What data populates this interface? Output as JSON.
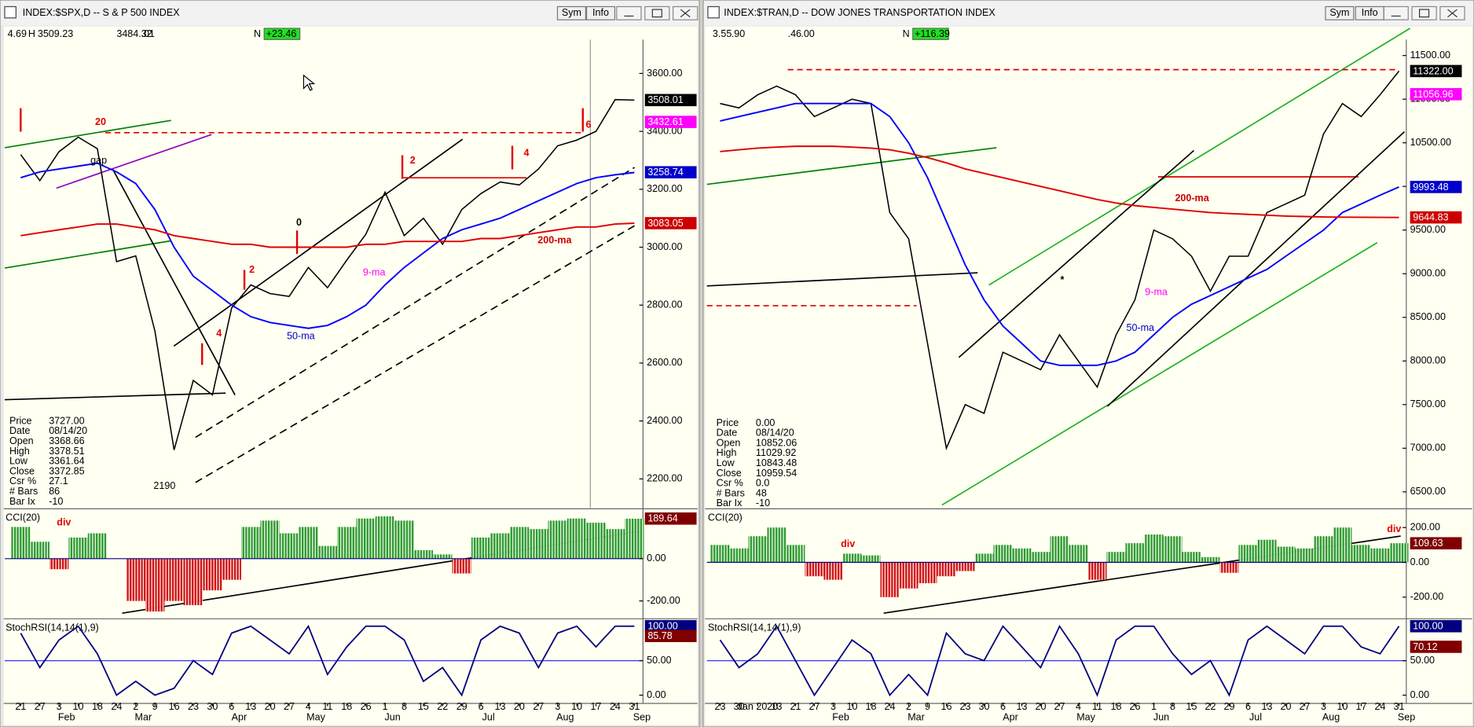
{
  "windows": [
    {
      "title": "INDEX:$SPX,D -- S & P 500 INDEX",
      "buttons": [
        "Sym",
        "Info"
      ],
      "info_row": [
        "4.69",
        "H",
        "3509.23",
        "3484.32",
        ".01",
        "N",
        "+23.46"
      ],
      "chart_data": {
        "type": "line",
        "categories": [
          "21",
          "27",
          "3",
          "10",
          "18",
          "24",
          "2",
          "9",
          "16",
          "23",
          "30",
          "6",
          "13",
          "20",
          "27",
          "4",
          "11",
          "18",
          "26",
          "1",
          "8",
          "15",
          "22",
          "29",
          "6",
          "13",
          "20",
          "27",
          "3",
          "10",
          "17",
          "24",
          "31"
        ],
        "month_labels": [
          null,
          null,
          "Feb",
          null,
          null,
          null,
          "Mar",
          null,
          null,
          null,
          null,
          "Apr",
          null,
          null,
          null,
          "May",
          null,
          null,
          null,
          "Jun",
          null,
          null,
          null,
          null,
          "Jul",
          null,
          null,
          null,
          "Aug",
          null,
          null,
          null,
          "Sep"
        ],
        "ylim": [
          2100,
          3717
        ],
        "yticks": [
          {
            "value": 2200,
            "label": "2200.00"
          },
          {
            "value": 2400,
            "label": "2400.00"
          },
          {
            "value": 2600,
            "label": "2600.00"
          },
          {
            "value": 2800,
            "label": "2800.00"
          },
          {
            "value": 3000,
            "label": "3000.00"
          },
          {
            "value": 3200,
            "label": "3200.00"
          },
          {
            "value": 3400,
            "label": "3400.00"
          },
          {
            "value": 3600,
            "label": "3600.00"
          }
        ],
        "series": [
          {
            "name": "Price",
            "color": "#000000",
            "values": [
              3320,
              3230,
              3330,
              3380,
              3340,
              2950,
              2970,
              2710,
              2300,
              2540,
              2490,
              2790,
              2870,
              2840,
              2830,
              2930,
              2860,
              2955,
              3045,
              3190,
              3040,
              3100,
              3010,
              3130,
              3185,
              3225,
              3215,
              3270,
              3350,
              3370,
              3400,
              3510,
              3508
            ]
          },
          {
            "name": "50-ma",
            "color": "#0000ff",
            "values": [
              3240,
              3260,
              3270,
              3280,
              3290,
              3260,
              3220,
              3130,
              3000,
              2900,
              2850,
              2800,
              2760,
              2740,
              2730,
              2720,
              2730,
              2760,
              2800,
              2870,
              2930,
              2980,
              3030,
              3060,
              3080,
              3100,
              3130,
              3160,
              3190,
              3220,
              3240,
              3250,
              3258
            ]
          },
          {
            "name": "200-ma",
            "color": "#e00000",
            "values": [
              3040,
              3050,
              3060,
              3070,
              3080,
              3080,
              3070,
              3060,
              3040,
              3030,
              3020,
              3010,
              3010,
              3000,
              3000,
              3000,
              3000,
              3000,
              3010,
              3010,
              3020,
              3020,
              3020,
              3020,
              3030,
              3030,
              3040,
              3050,
              3060,
              3070,
              3070,
              3080,
              3083
            ]
          }
        ],
        "readouts": [
          {
            "value": 3508.01,
            "label": "3508.01",
            "color": "#000000"
          },
          {
            "value": 3432.61,
            "label": "3432.61",
            "color": "#ff00ff"
          },
          {
            "value": 3258.74,
            "label": "3258.74",
            "color": "#0000cc"
          },
          {
            "value": 3083.05,
            "label": "3083.05",
            "color": "#cc0000"
          }
        ]
      },
      "cci": {
        "label": "CCI(20)",
        "ylim": [
          -280,
          227
        ],
        "yticks": [
          {
            "value": 0,
            "label": "0.00"
          },
          {
            "value": -200,
            "label": "-200.00"
          }
        ],
        "ref_line": 0,
        "values": [
          150,
          80,
          -50,
          100,
          120,
          0,
          -200,
          -250,
          -200,
          -220,
          -150,
          -100,
          150,
          180,
          120,
          150,
          60,
          150,
          190,
          200,
          180,
          40,
          20,
          -70,
          100,
          120,
          150,
          140,
          180,
          190,
          170,
          140,
          189
        ],
        "readouts": [
          {
            "value": 189.64,
            "label": "189.64",
            "color": "#800000"
          }
        ]
      },
      "stoch": {
        "label": "StochRSI(14,14(1),9)",
        "ylim": [
          -12,
          108
        ],
        "yticks": [
          {
            "value": 50,
            "label": "50.00"
          },
          {
            "value": 0,
            "label": "0.00"
          }
        ],
        "ref_line": 50,
        "color": "#000080",
        "values": [
          90,
          40,
          80,
          100,
          60,
          0,
          20,
          0,
          10,
          50,
          30,
          90,
          100,
          80,
          60,
          100,
          30,
          70,
          100,
          100,
          80,
          20,
          40,
          0,
          80,
          100,
          90,
          40,
          90,
          100,
          70,
          100,
          100
        ],
        "readouts": [
          {
            "value": 100,
            "label": "100.00",
            "color": "#000080"
          },
          {
            "value": 85.78,
            "label": "85.78",
            "color": "#800000"
          }
        ]
      },
      "info_panel": [
        [
          "Price",
          "3727.00"
        ],
        [
          "Date",
          "08/14/20"
        ],
        [
          "Open",
          "3368.66"
        ],
        [
          "High",
          "3378.51"
        ],
        [
          "Low",
          "3361.64"
        ],
        [
          "Close",
          "3372.85"
        ],
        [
          "Csr %",
          "27.1"
        ],
        [
          "# Bars",
          "86"
        ],
        [
          "Bar Ix",
          "-10"
        ]
      ],
      "annotations": [
        "20",
        "gap",
        "0",
        "2",
        "4",
        "2",
        "4",
        "6",
        "9-ma",
        "50-ma",
        "200-ma",
        "2190",
        "div"
      ]
    },
    {
      "title": "INDEX:$TRAN,D -- DOW JONES TRANSPORTATION INDEX",
      "buttons": [
        "Sym",
        "Info"
      ],
      "info_row": [
        "3.55",
        ".90",
        ".46",
        ".00",
        "N",
        "+116.39"
      ],
      "chart_data": {
        "type": "line",
        "categories": [
          "23",
          "30",
          "Jan 2020",
          "13",
          "21",
          "27",
          "3",
          "10",
          "18",
          "24",
          "2",
          "9",
          "16",
          "23",
          "30",
          "6",
          "13",
          "20",
          "27",
          "4",
          "11",
          "18",
          "26",
          "1",
          "8",
          "15",
          "22",
          "29",
          "6",
          "13",
          "20",
          "27",
          "3",
          "10",
          "17",
          "24",
          "31"
        ],
        "month_labels": [
          null,
          null,
          null,
          null,
          null,
          null,
          "Feb",
          null,
          null,
          null,
          "Mar",
          null,
          null,
          null,
          null,
          "Apr",
          null,
          null,
          null,
          "May",
          null,
          null,
          null,
          "Jun",
          null,
          null,
          null,
          null,
          "Jul",
          null,
          null,
          null,
          "Aug",
          null,
          null,
          null,
          "Sep"
        ],
        "ylim": [
          6317,
          11683
        ],
        "yticks": [
          {
            "value": 6500,
            "label": "6500.00"
          },
          {
            "value": 7000,
            "label": "7000.00"
          },
          {
            "value": 7500,
            "label": "7500.00"
          },
          {
            "value": 8000,
            "label": "8000.00"
          },
          {
            "value": 8500,
            "label": "8500.00"
          },
          {
            "value": 9000,
            "label": "9000.00"
          },
          {
            "value": 9500,
            "label": "9500.00"
          },
          {
            "value": 10000,
            "label": "10000.00"
          },
          {
            "value": 10500,
            "label": "10500.00"
          },
          {
            "value": 11000,
            "label": "11000.00"
          },
          {
            "value": 11500,
            "label": "11500.00"
          }
        ],
        "series": [
          {
            "name": "Price",
            "color": "#000000",
            "values": [
              10950,
              10900,
              11050,
              11150,
              11050,
              10800,
              10900,
              11000,
              10950,
              9700,
              9400,
              8200,
              7000,
              7500,
              7400,
              8100,
              8000,
              7900,
              8300,
              8000,
              7700,
              8300,
              8700,
              9500,
              9400,
              9200,
              8800,
              9200,
              9200,
              9700,
              9800,
              9900,
              10600,
              10950,
              10800,
              11050,
              11322
            ]
          },
          {
            "name": "50-ma",
            "color": "#0000ff",
            "values": [
              10750,
              10800,
              10850,
              10900,
              10950,
              10950,
              10950,
              10950,
              10950,
              10800,
              10500,
              10100,
              9600,
              9100,
              8700,
              8400,
              8200,
              8000,
              7950,
              7950,
              7950,
              8000,
              8100,
              8300,
              8500,
              8650,
              8750,
              8850,
              8950,
              9050,
              9200,
              9350,
              9500,
              9700,
              9800,
              9900,
              9993
            ]
          },
          {
            "name": "200-ma",
            "color": "#e00000",
            "values": [
              10400,
              10420,
              10440,
              10450,
              10460,
              10460,
              10460,
              10450,
              10440,
              10420,
              10380,
              10330,
              10270,
              10200,
              10150,
              10100,
              10050,
              10000,
              9950,
              9900,
              9850,
              9810,
              9780,
              9760,
              9740,
              9720,
              9700,
              9690,
              9680,
              9670,
              9660,
              9655,
              9650,
              9648,
              9646,
              9645,
              9644
            ]
          }
        ],
        "readouts": [
          {
            "value": 11322,
            "label": "11322.00",
            "color": "#000000"
          },
          {
            "value": 11056.96,
            "label": "11056.96",
            "color": "#ff00ff"
          },
          {
            "value": 9993.48,
            "label": "9993.48",
            "color": "#0000cc"
          },
          {
            "value": 9644.83,
            "label": "9644.83",
            "color": "#cc0000"
          }
        ]
      },
      "cci": {
        "label": "CCI(20)",
        "ylim": [
          -319,
          297
        ],
        "yticks": [
          {
            "value": 200,
            "label": "200.00"
          },
          {
            "value": 0,
            "label": "0.00"
          },
          {
            "value": -200,
            "label": "-200.00"
          }
        ],
        "ref_line": 0,
        "values": [
          100,
          80,
          150,
          200,
          100,
          -80,
          -100,
          50,
          40,
          -200,
          -150,
          -120,
          -80,
          -50,
          50,
          100,
          80,
          60,
          150,
          100,
          -100,
          60,
          110,
          160,
          150,
          60,
          30,
          -60,
          100,
          130,
          90,
          80,
          150,
          200,
          100,
          80,
          110
        ],
        "readouts": [
          {
            "value": 109.63,
            "label": "109.63",
            "color": "#800000"
          }
        ]
      },
      "stoch": {
        "label": "StochRSI(14,14(1),9)",
        "ylim": [
          -12,
          108
        ],
        "yticks": [
          {
            "value": 50,
            "label": "50.00"
          },
          {
            "value": 0,
            "label": "0.00"
          }
        ],
        "ref_line": 50,
        "color": "#000080",
        "values": [
          80,
          40,
          60,
          100,
          50,
          0,
          40,
          80,
          60,
          0,
          30,
          0,
          90,
          60,
          50,
          100,
          70,
          40,
          100,
          60,
          0,
          80,
          100,
          100,
          60,
          30,
          50,
          0,
          80,
          100,
          80,
          60,
          100,
          100,
          70,
          60,
          100
        ],
        "readouts": [
          {
            "value": 100,
            "label": "100.00",
            "color": "#000080"
          },
          {
            "value": 70.12,
            "label": "70.12",
            "color": "#800000"
          }
        ]
      },
      "info_panel": [
        [
          "Price",
          "0.00"
        ],
        [
          "Date",
          "08/14/20"
        ],
        [
          "Open",
          "10852.06"
        ],
        [
          "High",
          "11029.92"
        ],
        [
          "Low",
          "10843.48"
        ],
        [
          "Close",
          "10959.54"
        ],
        [
          "Csr %",
          "0.0"
        ],
        [
          "# Bars",
          "48"
        ],
        [
          "Bar Ix",
          "-10"
        ]
      ],
      "annotations": [
        "*",
        "200-ma",
        "9-ma",
        "50-ma",
        "div",
        "div"
      ]
    }
  ]
}
